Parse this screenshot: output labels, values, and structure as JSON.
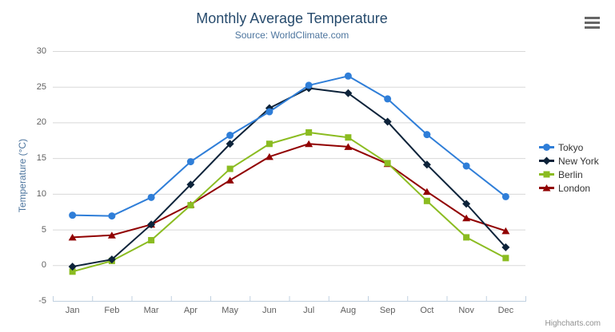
{
  "chart_data": {
    "type": "line",
    "title": "Monthly Average Temperature",
    "subtitle": "Source: WorldClimate.com",
    "ylabel": "Temperature (°C)",
    "xlabel": "",
    "categories": [
      "Jan",
      "Feb",
      "Mar",
      "Apr",
      "May",
      "Jun",
      "Jul",
      "Aug",
      "Sep",
      "Oct",
      "Nov",
      "Dec"
    ],
    "series": [
      {
        "name": "Tokyo",
        "color": "#2f7ed8",
        "marker": "circle",
        "values": [
          7.0,
          6.9,
          9.5,
          14.5,
          18.2,
          21.5,
          25.2,
          26.5,
          23.3,
          18.3,
          13.9,
          9.6
        ]
      },
      {
        "name": "New York",
        "color": "#0d233a",
        "marker": "diamond",
        "values": [
          -0.2,
          0.8,
          5.7,
          11.3,
          17.0,
          22.0,
          24.8,
          24.1,
          20.1,
          14.1,
          8.6,
          2.5
        ]
      },
      {
        "name": "Berlin",
        "color": "#8bbc21",
        "marker": "square",
        "values": [
          -0.9,
          0.6,
          3.5,
          8.4,
          13.5,
          17.0,
          18.6,
          17.9,
          14.3,
          9.0,
          3.9,
          1.0
        ]
      },
      {
        "name": "London",
        "color": "#910000",
        "marker": "triangle",
        "values": [
          3.9,
          4.2,
          5.7,
          8.5,
          11.9,
          15.2,
          17.0,
          16.6,
          14.2,
          10.3,
          6.6,
          4.8
        ]
      }
    ],
    "ylim": [
      -5,
      30
    ],
    "yticks": [
      30,
      25,
      20,
      15,
      10,
      5,
      0,
      -5
    ],
    "grid": true,
    "legend_position": "right",
    "grid_color": "#d8d8d8",
    "axis_line_color": "#c0d0e0",
    "tick_label_color": "#606060",
    "title_color": "#274b6d",
    "subtitle_color": "#4d759e",
    "legend_text_color": "#333333"
  },
  "credits": {
    "label": "Highcharts.com"
  },
  "icons": {
    "export_menu": "hamburger",
    "legend_markers": [
      "circle",
      "diamond",
      "square",
      "triangle"
    ]
  }
}
